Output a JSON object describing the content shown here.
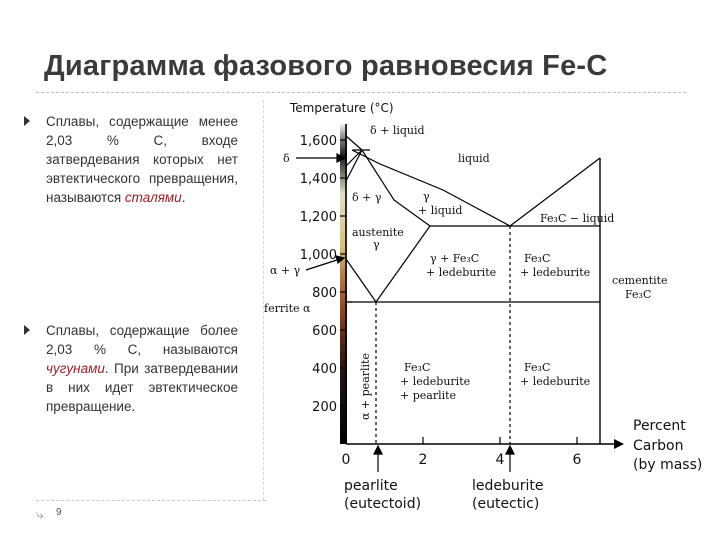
{
  "slide": {
    "title": "Диаграмма фазового равновесия Fe-C",
    "page_number": "9",
    "bullets": [
      {
        "before": "Сплавы, содержащие менее 2,03 % С, входе затвердевания которых нет эвтектического превращения, называются ",
        "highlight": "сталями",
        "after": "."
      },
      {
        "before": "Сплавы, содержащие более 2,03 % С, называются ",
        "highlight": "чугунами",
        "after": ". При затвердевании в них идет эвтектическое превращение."
      }
    ],
    "highlight_color": "#a0202a"
  },
  "diagram": {
    "y_axis_title": "Temperature (°C)",
    "y_ticks": [
      {
        "value": 1600,
        "label": "1,600"
      },
      {
        "value": 1400,
        "label": "1,400"
      },
      {
        "value": 1200,
        "label": "1,200"
      },
      {
        "value": 1000,
        "label": "1,000"
      },
      {
        "value": 800,
        "label": "800"
      },
      {
        "value": 600,
        "label": "600"
      },
      {
        "value": 400,
        "label": "400"
      },
      {
        "value": 200,
        "label": "200"
      }
    ],
    "x_ticks": [
      {
        "value": 0,
        "label": "0"
      },
      {
        "value": 2,
        "label": "2"
      },
      {
        "value": 4,
        "label": "4"
      },
      {
        "value": 6,
        "label": "6"
      }
    ],
    "x_axis_title": [
      "Percent",
      "Carbon",
      "(by mass)"
    ],
    "below_labels": {
      "pearlite": [
        "pearlite",
        "(eutectoid)"
      ],
      "ledeburite": [
        "ledeburite",
        "(eutectic)"
      ]
    },
    "left_labels": {
      "delta": "δ",
      "alpha_gamma": "α + γ",
      "ferrite": "ferrite α"
    },
    "regions": {
      "delta_liquid": "δ + liquid",
      "liquid": "liquid",
      "delta_gamma": "δ + γ",
      "gamma_liquid_1": "γ",
      "gamma_liquid_2": "+ liquid",
      "fe3c_liquid": "Fe₃C − liquid",
      "austenite_1": "austenite",
      "austenite_2": "γ",
      "g_fe3c_led_1": "γ + Fe₃C",
      "g_fe3c_led_2": "+ ledeburite",
      "fe3c_led_r_1": "Fe₃C",
      "fe3c_led_r_2": "+ ledeburite",
      "cementite_1": "cementite",
      "cementite_2": "Fe₃C",
      "alpha_pearlite": "α + pearlite",
      "lower_mid_1": "Fe₃C",
      "lower_mid_2": "+ ledeburite",
      "lower_mid_3": "+ pearlite",
      "lower_right_1": "Fe₃C",
      "lower_right_2": "+ ledeburite"
    }
  }
}
